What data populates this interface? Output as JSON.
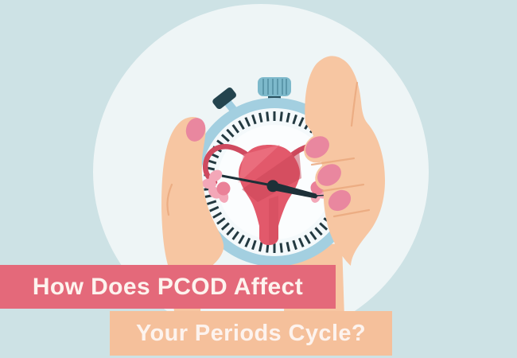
{
  "title": {
    "line1": "How Does PCOD Affect",
    "line2": "Your Periods Cycle?"
  },
  "illustration": {
    "description": "Flat illustration of a hand holding a stopwatch; the stopwatch face contains a uterus with fallopian tubes and ovaries, and the stopwatch needle points across it",
    "elements": [
      "hand-holding-stopwatch",
      "stopwatch",
      "uterus",
      "stopwatch-needle"
    ]
  },
  "colors": {
    "background": "#cde2e5",
    "circle": "#eef5f6",
    "banner_primary": "#e4697a",
    "banner_secondary": "#f5c09b",
    "banner_text": "#fdf3ee",
    "skin": "#f7c6a2",
    "skin_shadow": "#eaa87e",
    "nail": "#e9879f",
    "watch_ring": "#a3cfe0",
    "watch_face": "#f4f9fb",
    "watch_face_inner": "#fbfdfe",
    "tick": "#233940",
    "crown": "#7db9cb",
    "crown_ribs": "#5c98ab",
    "crown_dark": "#2a5260",
    "pusher_dark": "#24444e",
    "pusher_stem": "#9fcde0",
    "uterus": "#e2596b",
    "uterus_dark": "#c84356",
    "uterus_light": "#f07d8c",
    "tube": "#cf4a5f",
    "fimbriae": "#f3a7b8",
    "fimbriae_dark": "#ea8198",
    "needle": "#1d3038"
  }
}
